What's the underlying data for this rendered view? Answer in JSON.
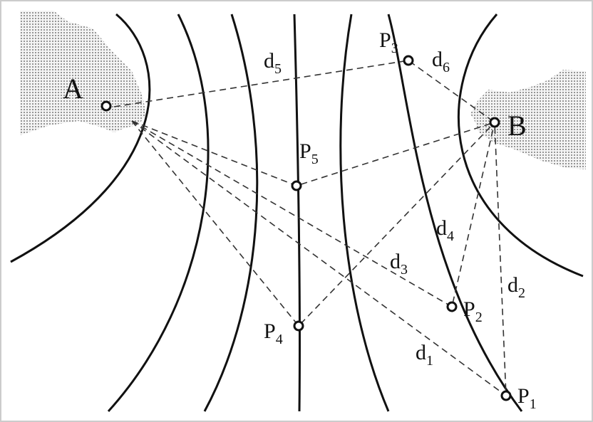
{
  "regions": {
    "A": "A",
    "B": "B"
  },
  "points": [
    {
      "base": "P",
      "sub": "1"
    },
    {
      "base": "P",
      "sub": "2"
    },
    {
      "base": "P",
      "sub": "3"
    },
    {
      "base": "P",
      "sub": "4"
    },
    {
      "base": "P",
      "sub": "5"
    }
  ],
  "distances": [
    {
      "base": "d",
      "sub": "1"
    },
    {
      "base": "d",
      "sub": "2"
    },
    {
      "base": "d",
      "sub": "3"
    },
    {
      "base": "d",
      "sub": "4"
    },
    {
      "base": "d",
      "sub": "5"
    },
    {
      "base": "d",
      "sub": "6"
    }
  ]
}
